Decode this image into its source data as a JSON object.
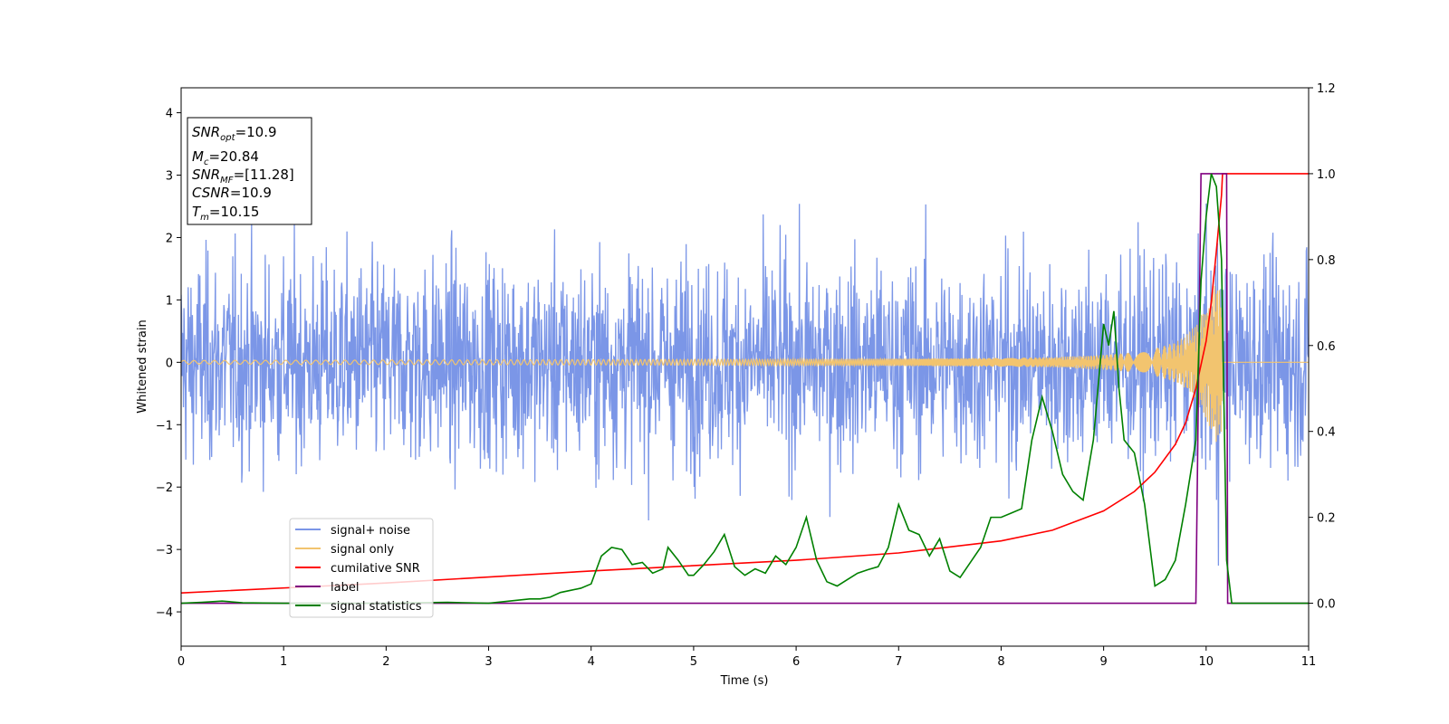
{
  "chart_data": {
    "type": "line",
    "xlabel": "Time (s)",
    "ylabel": "Whitened strain",
    "xlim": [
      0,
      11
    ],
    "ylim": [
      -4.55,
      4.4
    ],
    "y2lim": [
      -0.1,
      1.2
    ],
    "x_ticks": [
      "0",
      "1",
      "2",
      "3",
      "4",
      "5",
      "6",
      "7",
      "8",
      "9",
      "10",
      "11"
    ],
    "y_ticks": [
      "−4",
      "−3",
      "−2",
      "−1",
      "0",
      "1",
      "2",
      "3",
      "4"
    ],
    "y2_ticks": [
      "0.0",
      "0.2",
      "0.4",
      "0.6",
      "0.8",
      "1.0",
      "1.2"
    ],
    "legend_position": "lower-left",
    "grid": false,
    "series": [
      {
        "name": "signal+ noise",
        "axis": "left",
        "color": "#7b96e7",
        "description_value": "noise band, approx amplitude ±2.5, peaks near ±4"
      },
      {
        "name": "signal only",
        "axis": "left",
        "color": "#f2c46f",
        "x": [
          0,
          6,
          8,
          8.5,
          9,
          9.3,
          9.5,
          9.7,
          9.8,
          9.9,
          10.0,
          10.05,
          10.1,
          10.15,
          10.16,
          11
        ],
        "envelope": [
          0.03,
          0.05,
          0.07,
          0.08,
          0.12,
          0.16,
          0.22,
          0.32,
          0.42,
          0.6,
          0.9,
          1.1,
          1.3,
          1.1,
          0.0,
          0.0
        ]
      },
      {
        "name": "cumilative SNR",
        "axis": "right",
        "color": "#ff0000",
        "x": [
          0,
          2,
          4,
          6,
          7,
          8,
          8.5,
          9,
          9.3,
          9.5,
          9.7,
          9.8,
          9.9,
          10.0,
          10.05,
          10.1,
          10.15,
          10.16,
          11
        ],
        "y": [
          0.024,
          0.047,
          0.075,
          0.1,
          0.117,
          0.145,
          0.17,
          0.215,
          0.26,
          0.305,
          0.37,
          0.42,
          0.5,
          0.61,
          0.7,
          0.82,
          0.95,
          1.0,
          1.0
        ]
      },
      {
        "name": "label",
        "axis": "right",
        "color": "#800080",
        "x": [
          0,
          9.9,
          9.95,
          10.2,
          10.21,
          11
        ],
        "y": [
          0.0,
          0.0,
          1.0,
          1.0,
          0.0,
          0.0
        ]
      },
      {
        "name": "signal statistics",
        "axis": "right",
        "color": "#008000",
        "x": [
          0,
          0.2,
          0.4,
          0.6,
          1.0,
          2.0,
          2.6,
          3.0,
          3.2,
          3.4,
          3.5,
          3.6,
          3.7,
          3.8,
          3.9,
          4.0,
          4.1,
          4.2,
          4.3,
          4.4,
          4.5,
          4.6,
          4.7,
          4.75,
          4.85,
          4.95,
          5.0,
          5.1,
          5.2,
          5.3,
          5.4,
          5.5,
          5.6,
          5.7,
          5.8,
          5.9,
          6.0,
          6.1,
          6.2,
          6.3,
          6.4,
          6.5,
          6.6,
          6.7,
          6.8,
          6.9,
          7.0,
          7.1,
          7.2,
          7.3,
          7.4,
          7.5,
          7.6,
          7.7,
          7.8,
          7.9,
          8.0,
          8.1,
          8.2,
          8.3,
          8.4,
          8.5,
          8.6,
          8.7,
          8.8,
          8.9,
          9.0,
          9.05,
          9.1,
          9.15,
          9.2,
          9.3,
          9.4,
          9.5,
          9.6,
          9.7,
          9.8,
          9.9,
          9.95,
          10.0,
          10.05,
          10.1,
          10.15,
          10.2,
          10.25,
          10.3,
          11
        ],
        "y": [
          0.0,
          0.002,
          0.005,
          0.001,
          0.0,
          0.0,
          0.002,
          0.0,
          0.005,
          0.01,
          0.01,
          0.014,
          0.025,
          0.03,
          0.035,
          0.045,
          0.11,
          0.13,
          0.125,
          0.09,
          0.095,
          0.07,
          0.08,
          0.13,
          0.1,
          0.065,
          0.065,
          0.09,
          0.12,
          0.16,
          0.085,
          0.065,
          0.08,
          0.07,
          0.11,
          0.09,
          0.13,
          0.2,
          0.1,
          0.05,
          0.04,
          0.055,
          0.07,
          0.078,
          0.085,
          0.13,
          0.23,
          0.17,
          0.16,
          0.11,
          0.15,
          0.075,
          0.06,
          0.095,
          0.13,
          0.2,
          0.2,
          0.21,
          0.22,
          0.38,
          0.48,
          0.4,
          0.3,
          0.26,
          0.24,
          0.38,
          0.65,
          0.6,
          0.68,
          0.5,
          0.38,
          0.35,
          0.23,
          0.04,
          0.055,
          0.1,
          0.23,
          0.38,
          0.75,
          0.9,
          1.0,
          0.97,
          0.8,
          0.1,
          0.0,
          0.0,
          0.0
        ]
      }
    ]
  },
  "infobox": {
    "snr_opt_value": "=10.9",
    "mc_value": "=20.84",
    "snr_mf_value": "=[11.28]",
    "csnr_value": "=10.9",
    "tm_value": "=10.15"
  },
  "colors": {
    "noise": "#7b96e7",
    "signal": "#f2c46f",
    "snr": "#ff0000",
    "label": "#800080",
    "stats": "#008000"
  }
}
